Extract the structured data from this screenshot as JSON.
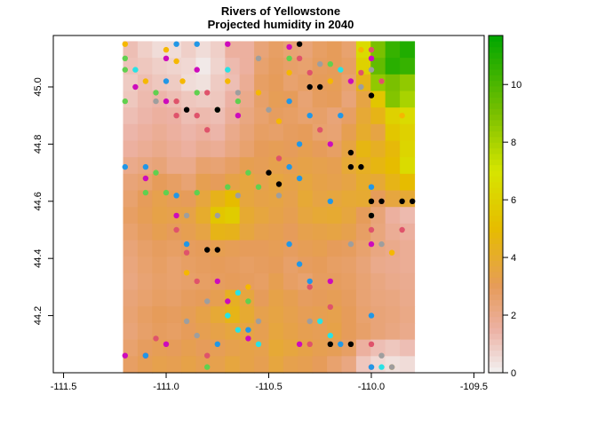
{
  "chart_data": {
    "type": "heatmap",
    "title": "Rivers of Yellowstone",
    "subtitle": "Projected humidity in 2040",
    "xlabel": "",
    "ylabel": "",
    "xlim": [
      -111.55,
      -109.45
    ],
    "ylim": [
      44.0,
      45.18
    ],
    "x_ticks": [
      -111.5,
      -111.0,
      -110.5,
      -110.0,
      -109.5
    ],
    "x_tick_labels": [
      "-111.5",
      "-111.0",
      "-110.5",
      "-110.0",
      "-109.5"
    ],
    "y_ticks": [
      44.2,
      44.4,
      44.6,
      44.8,
      45.0
    ],
    "y_tick_labels": [
      "44.2",
      "44.4",
      "44.6",
      "44.8",
      "45.0"
    ],
    "raster": {
      "x_min": -111.21,
      "x_max": -109.79,
      "y_min": 44.0,
      "y_max": 45.16,
      "cols": 20,
      "rows": 20,
      "description_of_values": "humidity",
      "values": [
        [
          1.2,
          0.8,
          0.5,
          0.5,
          0.8,
          0.5,
          0.8,
          1.6,
          1.6,
          2.4,
          2.8,
          2.5,
          2.4,
          2.8,
          3.0,
          2.6,
          6.5,
          9.0,
          10.5,
          11.0
        ],
        [
          1.1,
          1.0,
          0.8,
          0.7,
          0.6,
          0.2,
          0.7,
          1.3,
          1.6,
          2.6,
          2.9,
          2.7,
          2.6,
          2.9,
          3.0,
          2.8,
          6.0,
          9.5,
          10.8,
          10.5
        ],
        [
          0.9,
          1.2,
          1.0,
          0.9,
          0.5,
          0.4,
          0.9,
          1.2,
          1.8,
          2.8,
          3.0,
          2.6,
          2.8,
          3.0,
          3.1,
          2.6,
          4.5,
          8.5,
          9.0,
          8.5
        ],
        [
          1.0,
          1.3,
          1.4,
          1.2,
          1.0,
          0.9,
          1.0,
          1.5,
          2.0,
          2.7,
          3.1,
          3.0,
          2.5,
          2.9,
          3.0,
          2.4,
          3.5,
          5.5,
          8.8,
          8.0
        ],
        [
          1.2,
          1.4,
          1.6,
          1.5,
          1.2,
          1.3,
          1.2,
          1.7,
          2.2,
          2.6,
          2.9,
          2.8,
          2.6,
          2.7,
          2.4,
          2.8,
          3.8,
          4.5,
          6.0,
          6.5
        ],
        [
          1.4,
          1.6,
          1.8,
          1.6,
          1.4,
          1.6,
          1.4,
          2.0,
          2.4,
          2.8,
          2.7,
          2.9,
          3.0,
          2.6,
          2.5,
          3.2,
          4.0,
          3.5,
          5.5,
          6.0
        ],
        [
          1.6,
          1.8,
          2.0,
          1.8,
          1.6,
          1.9,
          1.8,
          2.2,
          2.6,
          3.0,
          3.1,
          3.0,
          3.2,
          3.0,
          2.8,
          3.5,
          4.6,
          4.2,
          4.8,
          6.2
        ],
        [
          2.0,
          2.2,
          2.4,
          2.0,
          2.0,
          2.6,
          2.5,
          2.8,
          3.2,
          3.1,
          3.3,
          3.2,
          3.4,
          3.3,
          3.2,
          3.8,
          4.2,
          4.6,
          5.0,
          6.5
        ],
        [
          2.4,
          2.6,
          3.0,
          2.8,
          2.5,
          3.2,
          3.0,
          3.4,
          3.6,
          3.3,
          3.6,
          3.4,
          3.6,
          3.4,
          3.3,
          3.5,
          4.0,
          3.8,
          4.5,
          5.0
        ],
        [
          2.6,
          3.0,
          3.3,
          3.1,
          3.0,
          3.6,
          4.4,
          5.0,
          3.6,
          3.4,
          3.5,
          3.3,
          3.8,
          3.5,
          3.6,
          3.8,
          3.9,
          3.0,
          3.6,
          3.8
        ],
        [
          2.8,
          3.1,
          3.4,
          3.3,
          3.4,
          4.0,
          5.5,
          5.8,
          3.9,
          3.6,
          3.4,
          3.2,
          3.6,
          3.8,
          3.9,
          3.6,
          3.0,
          2.4,
          1.6,
          1.3
        ],
        [
          2.6,
          2.9,
          3.2,
          3.0,
          3.2,
          3.5,
          4.5,
          4.4,
          3.6,
          3.3,
          3.2,
          3.0,
          3.3,
          3.4,
          3.5,
          3.3,
          2.8,
          2.3,
          1.8,
          1.6
        ],
        [
          2.4,
          2.7,
          2.9,
          2.8,
          2.9,
          3.0,
          3.2,
          3.1,
          3.0,
          3.0,
          3.1,
          2.9,
          3.1,
          3.2,
          3.0,
          2.9,
          2.6,
          2.2,
          2.0,
          1.8
        ],
        [
          2.3,
          2.6,
          2.8,
          2.6,
          2.8,
          2.9,
          3.0,
          2.9,
          2.8,
          2.9,
          3.0,
          2.7,
          2.9,
          3.0,
          2.8,
          2.7,
          2.4,
          2.0,
          1.9,
          1.8
        ],
        [
          2.2,
          2.5,
          2.7,
          2.6,
          2.7,
          2.8,
          2.9,
          3.0,
          2.9,
          2.8,
          3.2,
          2.8,
          2.6,
          2.9,
          2.9,
          2.8,
          2.5,
          2.2,
          2.0,
          1.9
        ],
        [
          2.4,
          2.6,
          2.8,
          2.7,
          2.9,
          3.0,
          3.2,
          4.2,
          3.6,
          3.0,
          3.4,
          3.2,
          2.9,
          3.0,
          3.1,
          2.9,
          2.5,
          2.3,
          2.2,
          2.0
        ],
        [
          2.5,
          2.8,
          3.0,
          2.9,
          3.1,
          3.4,
          3.8,
          4.5,
          3.9,
          3.3,
          3.5,
          3.3,
          3.1,
          3.2,
          3.3,
          3.0,
          2.6,
          2.4,
          2.3,
          2.1
        ],
        [
          2.4,
          2.7,
          2.9,
          2.8,
          3.0,
          3.2,
          3.4,
          3.6,
          3.5,
          3.2,
          3.6,
          3.4,
          3.2,
          3.1,
          3.4,
          3.0,
          2.7,
          2.4,
          2.2,
          2.0
        ],
        [
          2.6,
          2.9,
          3.1,
          3.0,
          3.2,
          3.0,
          3.1,
          3.3,
          3.4,
          3.3,
          3.8,
          3.6,
          3.4,
          3.2,
          3.1,
          2.8,
          1.6,
          1.2,
          1.0,
          1.2
        ],
        [
          2.8,
          3.1,
          3.3,
          3.2,
          3.4,
          3.2,
          3.3,
          3.6,
          3.4,
          3.2,
          3.6,
          3.3,
          3.2,
          3.0,
          2.6,
          2.2,
          1.0,
          0.6,
          0.4,
          0.5
        ]
      ]
    },
    "colorbar": {
      "min": 0,
      "max": 11.7,
      "ticks": [
        0,
        2,
        4,
        6,
        8,
        10
      ],
      "tick_labels": [
        "0",
        "2",
        "4",
        "6",
        "8",
        "10"
      ]
    },
    "points": {
      "colors": {
        "orange": "#f5b800",
        "green": "#61d04f",
        "pink": "#df536b",
        "magenta": "#cd0bbc",
        "blue": "#2297e6",
        "cyan": "#28e2e5",
        "gray": "#9e9e9e",
        "black": "#000000"
      },
      "series": [
        {
          "color": "orange",
          "coords": [
            [
              -111.2,
              45.15
            ],
            [
              -111.0,
              45.13
            ],
            [
              -110.95,
              45.09
            ],
            [
              -111.1,
              45.02
            ],
            [
              -110.92,
              45.02
            ],
            [
              -110.7,
              45.02
            ],
            [
              -110.55,
              44.98
            ],
            [
              -110.4,
              45.05
            ],
            [
              -110.2,
              45.02
            ],
            [
              -110.05,
              45.13
            ],
            [
              -109.95,
              45.02
            ],
            [
              -109.85,
              44.9
            ],
            [
              -110.45,
              44.88
            ],
            [
              -110.0,
              44.6
            ],
            [
              -109.9,
              44.42
            ],
            [
              -110.6,
              44.3
            ],
            [
              -110.9,
              44.35
            ],
            [
              -109.9,
              44.02
            ]
          ]
        },
        {
          "color": "green",
          "coords": [
            [
              -111.2,
              45.1
            ],
            [
              -111.2,
              45.06
            ],
            [
              -111.2,
              44.95
            ],
            [
              -111.05,
              44.98
            ],
            [
              -110.85,
              44.98
            ],
            [
              -110.75,
              44.92
            ],
            [
              -110.65,
              44.95
            ],
            [
              -110.4,
              45.1
            ],
            [
              -110.2,
              45.08
            ],
            [
              -110.0,
              44.55
            ],
            [
              -110.7,
              44.65
            ],
            [
              -110.6,
              44.7
            ],
            [
              -110.55,
              44.65
            ],
            [
              -111.05,
              44.7
            ],
            [
              -111.1,
              44.63
            ],
            [
              -111.0,
              44.63
            ],
            [
              -110.85,
              44.63
            ],
            [
              -110.8,
              44.02
            ],
            [
              -110.6,
              44.25
            ]
          ]
        },
        {
          "color": "pink",
          "coords": [
            [
              -110.4,
              45.14
            ],
            [
              -110.35,
              45.1
            ],
            [
              -110.3,
              45.05
            ],
            [
              -110.0,
              45.13
            ],
            [
              -110.05,
              45.05
            ],
            [
              -109.95,
              45.02
            ],
            [
              -110.95,
              44.95
            ],
            [
              -110.8,
              44.98
            ],
            [
              -110.95,
              44.9
            ],
            [
              -110.85,
              44.9
            ],
            [
              -110.8,
              44.85
            ],
            [
              -110.25,
              44.85
            ],
            [
              -110.45,
              44.75
            ],
            [
              -110.0,
              44.5
            ],
            [
              -109.85,
              44.5
            ],
            [
              -110.95,
              44.5
            ],
            [
              -110.9,
              44.42
            ],
            [
              -110.85,
              44.32
            ],
            [
              -110.3,
              44.3
            ],
            [
              -110.2,
              44.23
            ],
            [
              -110.0,
              44.1
            ],
            [
              -111.05,
              44.12
            ],
            [
              -110.8,
              44.06
            ],
            [
              -110.3,
              44.1
            ],
            [
              -110.0,
              44.02
            ]
          ]
        },
        {
          "color": "magenta",
          "coords": [
            [
              -111.0,
              45.1
            ],
            [
              -110.85,
              45.06
            ],
            [
              -110.7,
              45.15
            ],
            [
              -110.4,
              45.14
            ],
            [
              -110.0,
              45.1
            ],
            [
              -110.1,
              45.02
            ],
            [
              -111.15,
              45.0
            ],
            [
              -111.0,
              44.95
            ],
            [
              -110.65,
              44.9
            ],
            [
              -110.2,
              44.8
            ],
            [
              -110.0,
              44.45
            ],
            [
              -111.1,
              44.68
            ],
            [
              -110.95,
              44.55
            ],
            [
              -110.75,
              44.32
            ],
            [
              -110.7,
              44.25
            ],
            [
              -110.2,
              44.32
            ],
            [
              -111.0,
              44.1
            ],
            [
              -111.2,
              44.06
            ],
            [
              -111.1,
              44.06
            ],
            [
              -110.6,
              44.12
            ],
            [
              -110.35,
              44.1
            ]
          ]
        },
        {
          "color": "blue",
          "coords": [
            [
              -110.95,
              45.15
            ],
            [
              -110.85,
              45.15
            ],
            [
              -111.0,
              45.02
            ],
            [
              -111.2,
              44.72
            ],
            [
              -111.1,
              44.72
            ],
            [
              -110.4,
              44.95
            ],
            [
              -110.3,
              44.9
            ],
            [
              -110.15,
              44.9
            ],
            [
              -110.35,
              44.8
            ],
            [
              -110.4,
              44.72
            ],
            [
              -110.35,
              44.68
            ],
            [
              -110.2,
              44.6
            ],
            [
              -110.0,
              44.65
            ],
            [
              -110.95,
              44.62
            ],
            [
              -110.9,
              44.45
            ],
            [
              -110.4,
              44.45
            ],
            [
              -110.35,
              44.38
            ],
            [
              -110.3,
              44.32
            ],
            [
              -110.0,
              44.2
            ],
            [
              -110.75,
              44.1
            ],
            [
              -110.6,
              44.15
            ],
            [
              -111.1,
              44.06
            ],
            [
              -110.15,
              44.1
            ],
            [
              -110.0,
              44.02
            ]
          ]
        },
        {
          "color": "cyan",
          "coords": [
            [
              -111.15,
              45.06
            ],
            [
              -110.7,
              45.06
            ],
            [
              -110.15,
              45.06
            ],
            [
              -110.65,
              44.28
            ],
            [
              -110.7,
              44.2
            ],
            [
              -110.65,
              44.15
            ],
            [
              -110.55,
              44.1
            ],
            [
              -110.2,
              44.13
            ],
            [
              -109.95,
              44.02
            ],
            [
              -110.25,
              44.18
            ]
          ]
        },
        {
          "color": "gray",
          "coords": [
            [
              -110.55,
              45.1
            ],
            [
              -110.25,
              45.08
            ],
            [
              -110.0,
              45.06
            ],
            [
              -110.05,
              45.0
            ],
            [
              -111.05,
              44.95
            ],
            [
              -110.65,
              44.98
            ],
            [
              -110.5,
              44.92
            ],
            [
              -110.45,
              44.62
            ],
            [
              -110.65,
              44.62
            ],
            [
              -110.1,
              44.45
            ],
            [
              -109.95,
              44.45
            ],
            [
              -110.75,
              44.55
            ],
            [
              -110.9,
              44.55
            ],
            [
              -110.8,
              44.25
            ],
            [
              -110.9,
              44.18
            ],
            [
              -110.85,
              44.13
            ],
            [
              -110.55,
              44.18
            ],
            [
              -110.3,
              44.18
            ],
            [
              -109.95,
              44.06
            ],
            [
              -109.9,
              44.02
            ]
          ]
        },
        {
          "color": "black",
          "coords": [
            [
              -110.35,
              45.15
            ],
            [
              -110.3,
              45.0
            ],
            [
              -110.25,
              45.0
            ],
            [
              -110.0,
              44.97
            ],
            [
              -110.9,
              44.92
            ],
            [
              -110.75,
              44.92
            ],
            [
              -110.1,
              44.77
            ],
            [
              -110.1,
              44.72
            ],
            [
              -110.05,
              44.72
            ],
            [
              -110.5,
              44.7
            ],
            [
              -110.45,
              44.66
            ],
            [
              -110.0,
              44.6
            ],
            [
              -109.95,
              44.6
            ],
            [
              -109.85,
              44.6
            ],
            [
              -109.8,
              44.6
            ],
            [
              -110.0,
              44.55
            ],
            [
              -110.8,
              44.43
            ],
            [
              -110.75,
              44.43
            ],
            [
              -110.2,
              44.1
            ],
            [
              -110.1,
              44.1
            ]
          ]
        }
      ]
    }
  }
}
